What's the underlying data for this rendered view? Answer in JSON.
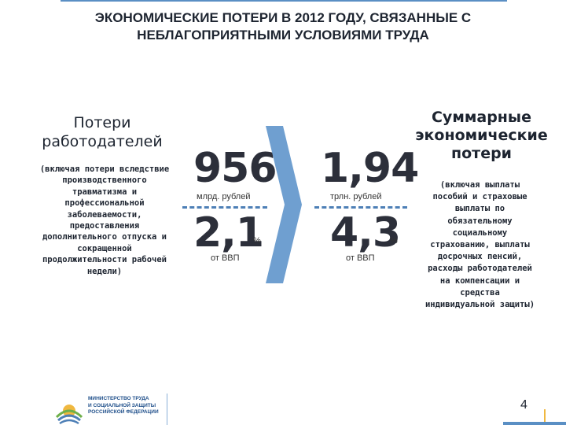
{
  "title": {
    "line1": "ЭКОНОМИЧЕСКИЕ ПОТЕРИ В 2012 ГОДУ, СВЯЗАННЫЕ С",
    "line2": "НЕБЛАГОПРИЯТНЫМИ УСЛОВИЯМИ ТРУДА"
  },
  "left": {
    "heading": [
      "Потери",
      "работодателей"
    ],
    "note": [
      "(включая потери вследствие",
      "производственного",
      "травматизма и",
      "профессиональной",
      "заболеваемости,",
      "предоставления",
      "дополнительного отпуска и",
      "сокращенной",
      "продолжительности рабочей",
      "недели)"
    ],
    "value": "956",
    "value_unit": "млрд. рублей",
    "share": "2,1",
    "share_pct": "%",
    "share_unit": "от ВВП"
  },
  "right": {
    "heading": [
      "Суммарные",
      "экономические",
      "потери"
    ],
    "note": [
      "(включая выплаты",
      "пособий и страховые",
      "выплаты по",
      "обязательному",
      "социальному",
      "страхованию, выплаты",
      "досрочных пенсий,",
      "расходы работодателей",
      "на компенсации и",
      "средства",
      "индивидуальной защиты)"
    ],
    "value": "1,94",
    "value_unit": "трлн. рублей",
    "share": "4,3",
    "share_pct": "%",
    "share_unit": "от ВВП"
  },
  "footer": {
    "org": [
      "Министерство труда",
      "и социальной защиты",
      "Российской Федерации"
    ],
    "page_number": "4"
  },
  "colors": {
    "accent_blue": "#4d7fb6",
    "chevron_blue": "#6f9fd0",
    "logo_yellow": "#f0b840",
    "logo_green": "#6fb04a"
  },
  "icons": [
    "chevron-right-icon",
    "ministry-logo-icon"
  ]
}
